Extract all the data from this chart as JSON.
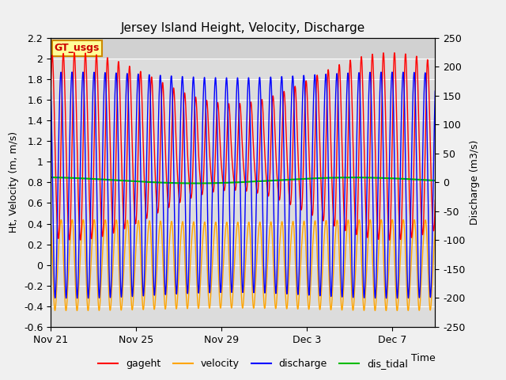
{
  "title": "Jersey Island Height, Velocity, Discharge",
  "xlabel": "Time",
  "ylabel_left": "Ht, Velocity (m, m/s)",
  "ylabel_right": "Discharge (m3/s)",
  "ylim_left": [
    -0.6,
    2.2
  ],
  "ylim_right": [
    -250,
    250
  ],
  "yticks_left": [
    -0.6,
    -0.4,
    -0.2,
    0.0,
    0.2,
    0.4,
    0.6,
    0.8,
    1.0,
    1.2,
    1.4,
    1.6,
    1.8,
    2.0,
    2.2
  ],
  "yticks_right": [
    -250,
    -200,
    -150,
    -100,
    -50,
    0,
    50,
    100,
    150,
    200,
    250
  ],
  "xtick_labels": [
    "Nov 21",
    "Nov 25",
    "Nov 29",
    "Dec 3",
    "Dec 7"
  ],
  "xtick_positions": [
    0,
    4,
    8,
    12,
    16
  ],
  "xlim": [
    0,
    18
  ],
  "tidal_period_hours": 12.4,
  "colors": {
    "gageht": "#ff0000",
    "velocity": "#ffa500",
    "discharge": "#0000ff",
    "dis_tidal": "#00bb00"
  },
  "linewidths": {
    "gageht": 1.0,
    "velocity": 1.0,
    "discharge": 1.0,
    "dis_tidal": 1.5
  },
  "bg_color": "#f0f0f0",
  "plot_bg_color": "#dcdcdc",
  "annotation_text": "GT_usgs",
  "annotation_bg": "#ffff99",
  "annotation_border": "#cc8800",
  "fig_width": 6.4,
  "fig_height": 4.8,
  "dpi": 100
}
